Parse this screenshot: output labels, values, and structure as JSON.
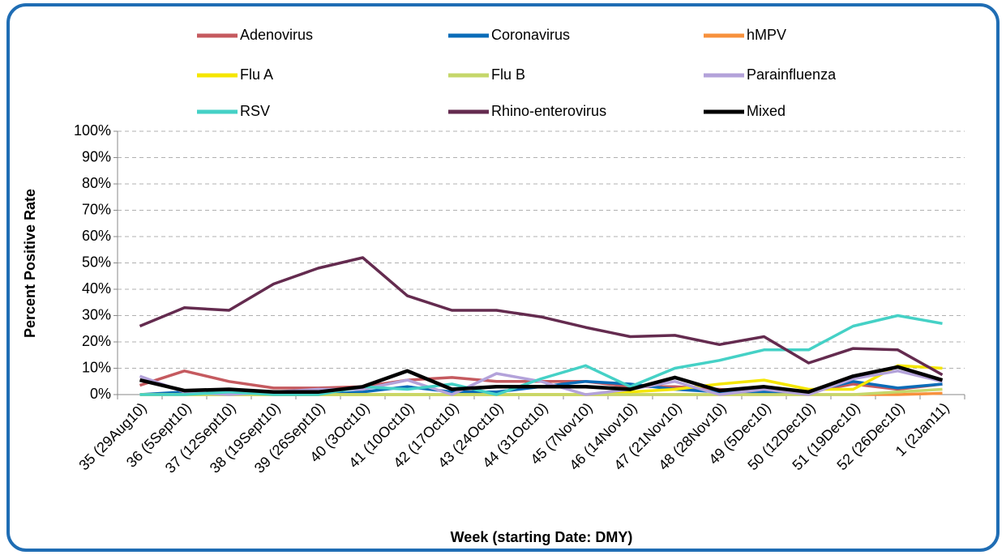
{
  "chart_data": {
    "type": "line",
    "xlabel": "Week (starting Date: DMY)",
    "ylabel": "Percent Positive Rate",
    "categories": [
      "35 (29Aug10)",
      "36 (5Sept10)",
      "37 (12Sept10)",
      "38 (19Sept10)",
      "39 (26Sept10)",
      "40 (3Oct10)",
      "41 (10Oct10)",
      "42 (17Oct10)",
      "43 (24Oct10)",
      "44 (31Oct10)",
      "45 (7Nov10)",
      "46 (14Nov10)",
      "47 (21Nov10)",
      "48 (28Nov10)",
      "49 (5Dec10)",
      "50 (12Dec10)",
      "51 (19Dec10)",
      "52 (26Dec10)",
      "1 (2Jan11)"
    ],
    "ylim": [
      0,
      100
    ],
    "yticks": [
      {
        "value": 0,
        "label": "0%"
      },
      {
        "value": 10,
        "label": "10%"
      },
      {
        "value": 20,
        "label": "20%"
      },
      {
        "value": 30,
        "label": "30%"
      },
      {
        "value": 40,
        "label": "40%"
      },
      {
        "value": 50,
        "label": "50%"
      },
      {
        "value": 60,
        "label": "60%"
      },
      {
        "value": 70,
        "label": "70%"
      },
      {
        "value": 80,
        "label": "80%"
      },
      {
        "value": 90,
        "label": "90%"
      },
      {
        "value": 100,
        "label": "100%"
      }
    ],
    "grid": true,
    "legend": "top",
    "series": [
      {
        "name": "Adenovirus",
        "color": "#c55a5f",
        "values": [
          3.5,
          9,
          5,
          2.5,
          2.5,
          3,
          5.5,
          6.5,
          5,
          5,
          5,
          3,
          3,
          2,
          1,
          1,
          4,
          2,
          4
        ]
      },
      {
        "name": "Coronavirus",
        "color": "#0a6cb8",
        "values": [
          0,
          1,
          1,
          0,
          0,
          1,
          3,
          1,
          1,
          3,
          5,
          4,
          2,
          1,
          1,
          1,
          5,
          2.5,
          4
        ]
      },
      {
        "name": "hMPV",
        "color": "#f7913d",
        "values": [
          0,
          0,
          0,
          0,
          0,
          0,
          0,
          0,
          0,
          0,
          0,
          0,
          0,
          0,
          0,
          0,
          0,
          0,
          0.5
        ]
      },
      {
        "name": "Flu A",
        "color": "#f5e600",
        "values": [
          0,
          0,
          0,
          0,
          0,
          0,
          0,
          0,
          0,
          0,
          0,
          1,
          2,
          4,
          5.5,
          2,
          2,
          11,
          10
        ]
      },
      {
        "name": "Flu B",
        "color": "#c5d76a",
        "values": [
          0,
          0,
          0,
          0,
          0,
          0,
          0,
          0,
          0,
          0,
          0,
          0,
          0,
          0,
          0,
          0,
          0,
          1,
          2
        ]
      },
      {
        "name": "Parainfluenza",
        "color": "#b3a2da",
        "values": [
          7,
          1,
          0,
          1,
          2,
          2,
          5.5,
          0,
          8,
          5,
          0,
          2,
          5,
          0,
          2,
          0,
          6,
          9,
          5
        ]
      },
      {
        "name": "RSV",
        "color": "#45d1c6",
        "values": [
          0,
          0,
          1,
          0,
          0,
          3,
          2,
          4,
          0,
          6,
          11,
          3,
          10,
          13,
          17,
          17,
          26,
          30,
          27
        ]
      },
      {
        "name": "Rhino-enterovirus",
        "color": "#642b4f",
        "values": [
          26,
          33,
          32,
          42,
          48,
          52,
          37.5,
          32,
          32,
          29.5,
          25.5,
          22,
          22.5,
          19,
          22,
          12,
          17.5,
          17,
          7.5
        ]
      },
      {
        "name": "Mixed",
        "color": "#000000",
        "values": [
          5.5,
          1.5,
          2,
          1,
          1,
          3,
          9,
          2,
          3,
          3,
          3,
          2,
          6.5,
          1.5,
          3,
          1,
          7,
          10.5,
          5.5
        ]
      }
    ]
  }
}
